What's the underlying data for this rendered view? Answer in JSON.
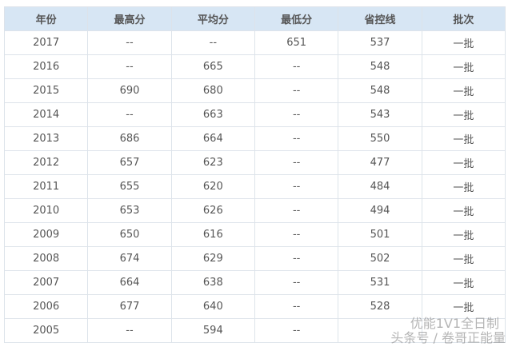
{
  "table": {
    "headers": [
      "年份",
      "最高分",
      "平均分",
      "最低分",
      "省控线",
      "批次"
    ],
    "rows": [
      [
        "2017",
        "--",
        "--",
        "651",
        "537",
        "一批"
      ],
      [
        "2016",
        "--",
        "665",
        "--",
        "548",
        "一批"
      ],
      [
        "2015",
        "690",
        "680",
        "--",
        "548",
        "一批"
      ],
      [
        "2014",
        "--",
        "663",
        "--",
        "543",
        "一批"
      ],
      [
        "2013",
        "686",
        "664",
        "--",
        "550",
        "一批"
      ],
      [
        "2012",
        "657",
        "623",
        "--",
        "477",
        "一批"
      ],
      [
        "2011",
        "655",
        "620",
        "--",
        "484",
        "一批"
      ],
      [
        "2010",
        "653",
        "626",
        "--",
        "494",
        "一批"
      ],
      [
        "2009",
        "650",
        "616",
        "--",
        "501",
        "一批"
      ],
      [
        "2008",
        "674",
        "629",
        "--",
        "502",
        "一批"
      ],
      [
        "2007",
        "664",
        "638",
        "--",
        "531",
        "一批"
      ],
      [
        "2006",
        "677",
        "640",
        "--",
        "528",
        "一批"
      ],
      [
        "2005",
        "--",
        "594",
        "--",
        "",
        ""
      ]
    ]
  },
  "watermark": {
    "line1": "优能1V1全日制",
    "line2": "头条号 / 卷哥正能量"
  },
  "colors": {
    "header_bg": "#d7e6f4",
    "border": "#dde3ea"
  }
}
